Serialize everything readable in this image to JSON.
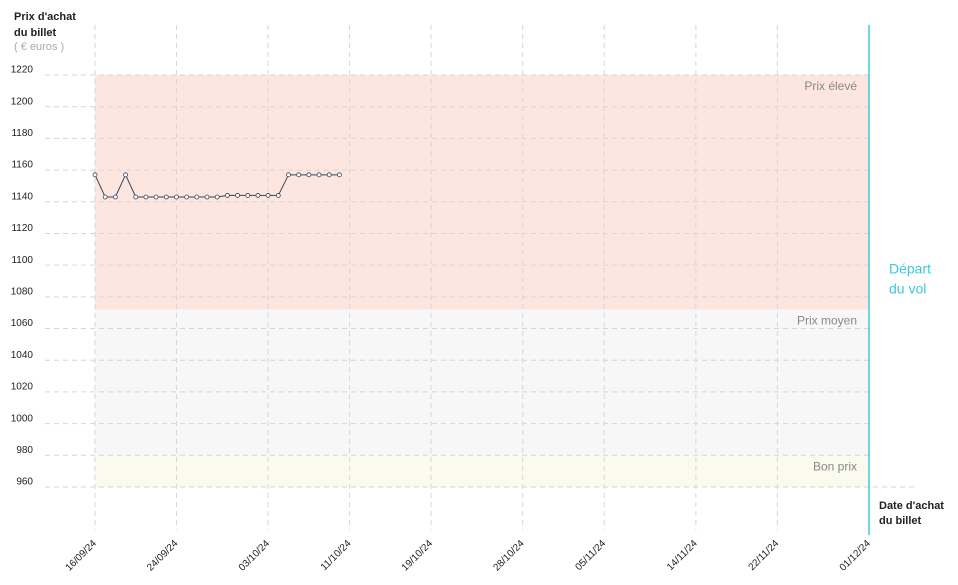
{
  "chart_data": {
    "type": "line",
    "y_label_lines": [
      "Prix d'achat",
      "du billet"
    ],
    "y_unit": "( € euros )",
    "x_label_lines": [
      "Date d'achat",
      "du billet"
    ],
    "x": [
      "16/09/24",
      "17/09/24",
      "18/09/24",
      "19/09/24",
      "20/09/24",
      "21/09/24",
      "22/09/24",
      "23/09/24",
      "24/09/24",
      "25/09/24",
      "26/09/24",
      "27/09/24",
      "28/09/24",
      "29/09/24",
      "30/09/24",
      "01/10/24",
      "02/10/24",
      "03/10/24",
      "04/10/24",
      "05/10/24",
      "06/10/24",
      "07/10/24",
      "08/10/24",
      "09/10/24",
      "10/10/24"
    ],
    "series": [
      {
        "color": "#3b4256",
        "values": [
          1157,
          1143,
          1143,
          1157,
          1143,
          1143,
          1143,
          1143,
          1143,
          1143,
          1143,
          1143,
          1143,
          1144,
          1144,
          1144,
          1144,
          1144,
          1144,
          1157,
          1157,
          1157,
          1157,
          1157,
          1157
        ]
      }
    ],
    "xlim": [
      "16/09/24",
      "01/12/24"
    ],
    "xticks": [
      "16/09/24",
      "24/09/24",
      "03/10/24",
      "11/10/24",
      "19/10/24",
      "28/10/24",
      "05/11/24",
      "14/11/24",
      "22/11/24",
      "01/12/24"
    ],
    "ylim": [
      960,
      1220
    ],
    "yticks": [
      960,
      980,
      1000,
      1020,
      1040,
      1060,
      1080,
      1100,
      1120,
      1140,
      1160,
      1180,
      1200,
      1220
    ],
    "grid": true,
    "bands": [
      {
        "label": "Prix élevé",
        "from": 1072,
        "to": 1220,
        "color": "#fde6df"
      },
      {
        "label": "Prix moyen",
        "from": 980,
        "to": 1072,
        "color": "#f7f7f7"
      },
      {
        "label": "Bon prix",
        "from": 960,
        "to": 980,
        "color": "#fafaef"
      }
    ],
    "departure": {
      "x": "01/12/24",
      "label_lines": [
        "Départ",
        "du vol"
      ],
      "color": "#3ac8e0"
    }
  }
}
